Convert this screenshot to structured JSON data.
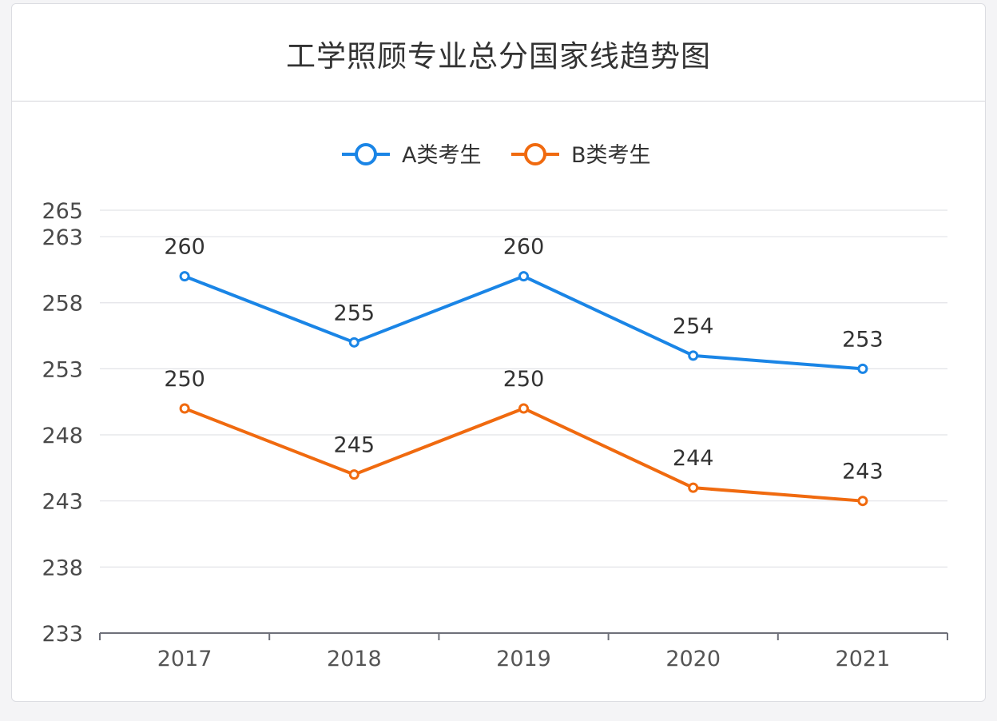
{
  "chart_data": {
    "type": "line",
    "title": "工学照顾专业总分国家线趋势图",
    "categories": [
      "2017",
      "2018",
      "2019",
      "2020",
      "2021"
    ],
    "series": [
      {
        "name": "A类考生",
        "values": [
          260,
          255,
          260,
          254,
          253
        ],
        "color": "#1a85e6"
      },
      {
        "name": "B类考生",
        "values": [
          250,
          245,
          250,
          244,
          243
        ],
        "color": "#f06a0f"
      }
    ],
    "yticks": [
      "233",
      "238",
      "243",
      "248",
      "253",
      "258",
      "263",
      "265"
    ],
    "ylim": [
      233,
      265
    ],
    "grid": true,
    "legend_position": "top-center",
    "xlabel": "",
    "ylabel": ""
  }
}
